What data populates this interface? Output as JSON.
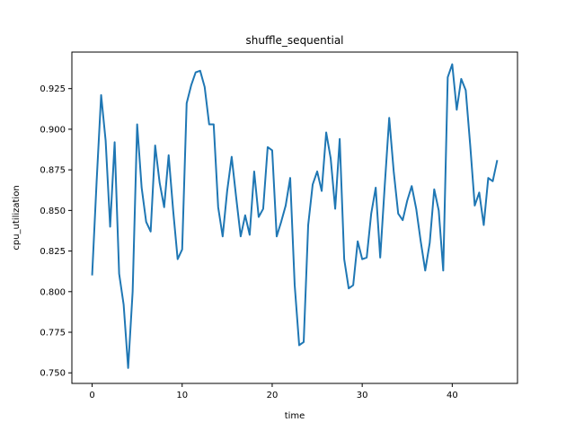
{
  "chart_data": {
    "type": "line",
    "title": "shuffle_sequential",
    "xlabel": "time",
    "ylabel": "cpu_utilization",
    "xlim": [
      -2.25,
      47.25
    ],
    "ylim": [
      0.7435,
      0.9475
    ],
    "xticks": [
      0,
      10,
      20,
      30,
      40
    ],
    "xtick_labels": [
      "0",
      "10",
      "20",
      "30",
      "40"
    ],
    "yticks": [
      0.75,
      0.775,
      0.8,
      0.825,
      0.85,
      0.875,
      0.9,
      0.925
    ],
    "ytick_labels": [
      "0.750",
      "0.775",
      "0.800",
      "0.825",
      "0.850",
      "0.875",
      "0.900",
      "0.925"
    ],
    "grid": false,
    "color": "#1f77b4",
    "series": [
      {
        "x": [
          0,
          0.5,
          1,
          1.5,
          2,
          2.5,
          3,
          3.5,
          4,
          4.5,
          5,
          5.5,
          6,
          6.5,
          7,
          7.5,
          8,
          8.5,
          9,
          9.5,
          10,
          10.5,
          11,
          11.5,
          12,
          12.5,
          13,
          13.5,
          14,
          14.5,
          15,
          15.5,
          16,
          16.5,
          17,
          17.5,
          18,
          18.5,
          19,
          19.5,
          20,
          20.5,
          21,
          21.5,
          22,
          22.5,
          23,
          23.5,
          24,
          24.5,
          25,
          25.5,
          26,
          26.5,
          27,
          27.5,
          28,
          28.5,
          29,
          29.5,
          30,
          30.5,
          31,
          31.5,
          32,
          32.5,
          33,
          33.5,
          34,
          34.5,
          35,
          35.5,
          36,
          36.5,
          37,
          37.5,
          38,
          38.5,
          39,
          39.5,
          40,
          40.5,
          41,
          41.5,
          42,
          42.5,
          43,
          43.5,
          44,
          44.5,
          45
        ],
        "y": [
          0.81,
          0.868,
          0.921,
          0.893,
          0.84,
          0.892,
          0.811,
          0.792,
          0.753,
          0.8,
          0.903,
          0.864,
          0.843,
          0.837,
          0.89,
          0.867,
          0.852,
          0.884,
          0.85,
          0.82,
          0.826,
          0.916,
          0.927,
          0.935,
          0.936,
          0.926,
          0.903,
          0.903,
          0.852,
          0.834,
          0.862,
          0.883,
          0.858,
          0.834,
          0.847,
          0.835,
          0.874,
          0.846,
          0.851,
          0.889,
          0.887,
          0.834,
          0.843,
          0.853,
          0.87,
          0.804,
          0.767,
          0.769,
          0.841,
          0.866,
          0.874,
          0.862,
          0.898,
          0.882,
          0.851,
          0.894,
          0.82,
          0.802,
          0.804,
          0.831,
          0.82,
          0.821,
          0.848,
          0.864,
          0.821,
          0.865,
          0.907,
          0.874,
          0.848,
          0.844,
          0.856,
          0.865,
          0.851,
          0.831,
          0.813,
          0.83,
          0.863,
          0.85,
          0.813,
          0.932,
          0.94,
          0.912,
          0.931,
          0.924,
          0.89,
          0.853,
          0.861,
          0.841,
          0.87,
          0.868,
          0.881
        ]
      }
    ]
  }
}
